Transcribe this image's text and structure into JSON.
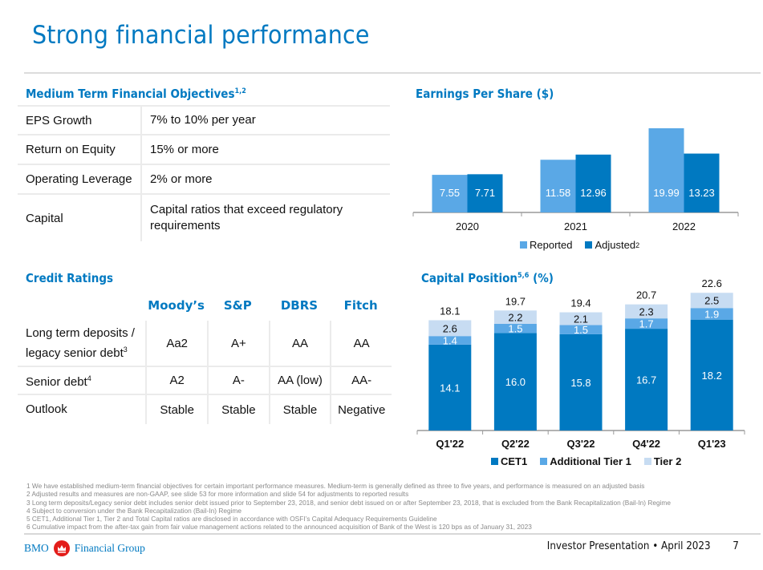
{
  "header": {
    "title": "Strong financial performance"
  },
  "objectives": {
    "heading": "Medium Term Financial Objectives",
    "heading_sup": "1,2",
    "rows": [
      {
        "label": "EPS Growth",
        "value": "7% to 10% per year"
      },
      {
        "label": "Return on Equity",
        "value": "15% or more"
      },
      {
        "label": "Operating Leverage",
        "value": "2% or more"
      },
      {
        "label": "Capital",
        "value": "Capital ratios that exceed regulatory requirements"
      }
    ]
  },
  "ratings": {
    "heading": "Credit Ratings",
    "agencies": [
      "Moody’s",
      "S&P",
      "DBRS",
      "Fitch"
    ],
    "rows": [
      {
        "label": "Long term deposits / legacy senior debt",
        "sup": "3",
        "values": [
          "Aa2",
          "A+",
          "AA",
          "AA"
        ]
      },
      {
        "label": "Senior debt",
        "sup": "4",
        "values": [
          "A2",
          "A-",
          "AA (low)",
          "AA-"
        ]
      },
      {
        "label": "Outlook",
        "sup": "",
        "values": [
          "Stable",
          "Stable",
          "Stable",
          "Negative"
        ]
      }
    ]
  },
  "colors": {
    "brand_blue": "#0079c1",
    "light_blue": "#5aa8e6",
    "pale_blue": "#c7dcf2",
    "brand_red": "#e31d1a"
  },
  "chart_data": [
    {
      "id": "eps",
      "type": "bar",
      "title": "Earnings Per Share ($)",
      "categories": [
        "2020",
        "2021",
        "2022"
      ],
      "series": [
        {
          "name": "Reported",
          "values": [
            7.55,
            11.58,
            19.99
          ],
          "labels": [
            "7.55",
            "11.58",
            "19.99"
          ]
        },
        {
          "name": "Adjusted",
          "name_sup": "2",
          "values": [
            7.71,
            12.96,
            13.23
          ],
          "labels": [
            "7.71",
            "12.96",
            "13.23"
          ]
        }
      ],
      "xlabel": "",
      "ylabel": "",
      "grid": false,
      "legend": "bottom"
    },
    {
      "id": "capital",
      "type": "bar",
      "stacked": true,
      "title": "Capital Position",
      "title_sup": "5,6",
      "title_suffix": "(%)",
      "categories": [
        "Q1'22",
        "Q2'22",
        "Q3'22",
        "Q4'22",
        "Q1'23"
      ],
      "series": [
        {
          "name": "CET1",
          "values": [
            14.1,
            16.0,
            15.8,
            16.7,
            18.2
          ],
          "labels": [
            "14.1",
            "16.0",
            "15.8",
            "16.7",
            "18.2"
          ]
        },
        {
          "name": "Additional Tier 1",
          "values": [
            1.4,
            1.5,
            1.5,
            1.7,
            1.9
          ],
          "labels": [
            "1.4",
            "1.5",
            "1.5",
            "1.7",
            "1.9"
          ]
        },
        {
          "name": "Tier 2",
          "values": [
            2.6,
            2.2,
            2.1,
            2.3,
            2.5
          ],
          "labels": [
            "2.6",
            "2.2",
            "2.1",
            "2.3",
            "2.5"
          ]
        }
      ],
      "totals": [
        "18.1",
        "19.7",
        "19.4",
        "20.7",
        "22.6"
      ],
      "xlabel": "",
      "ylabel": "",
      "grid": false,
      "legend": "bottom"
    }
  ],
  "footnotes": [
    "1  We have established medium-term financial objectives for certain important performance measures. Medium-term is generally defined as three to five years, and performance is measured on an adjusted basis",
    "2  Adjusted results and measures are non-GAAP, see slide 53 for more information and slide 54 for adjustments to reported results",
    "3  Long term deposits/Legacy senior debt includes senior debt issued prior to September 23, 2018, and senior debt issued on or after September 23, 2018, that is excluded from the Bank Recapitalization (Bail-In) Regime",
    "4  Subject to conversion under the Bank Recapitalization (Bail-In) Regime",
    "5  CET1, Additional Tier 1, Tier 2 and Total Capital ratios are disclosed in accordance with OSFI’s Capital Adequacy Requirements Guideline",
    "6  Cumulative impact from the after-tax gain from fair value management actions related to the announced acquisition of Bank of the West is 120 bps as of January 31, 2023"
  ],
  "footer": {
    "logo_left": "BMO",
    "logo_right": "Financial Group",
    "presentation": "Investor Presentation • April 2023",
    "page_number": "7"
  }
}
